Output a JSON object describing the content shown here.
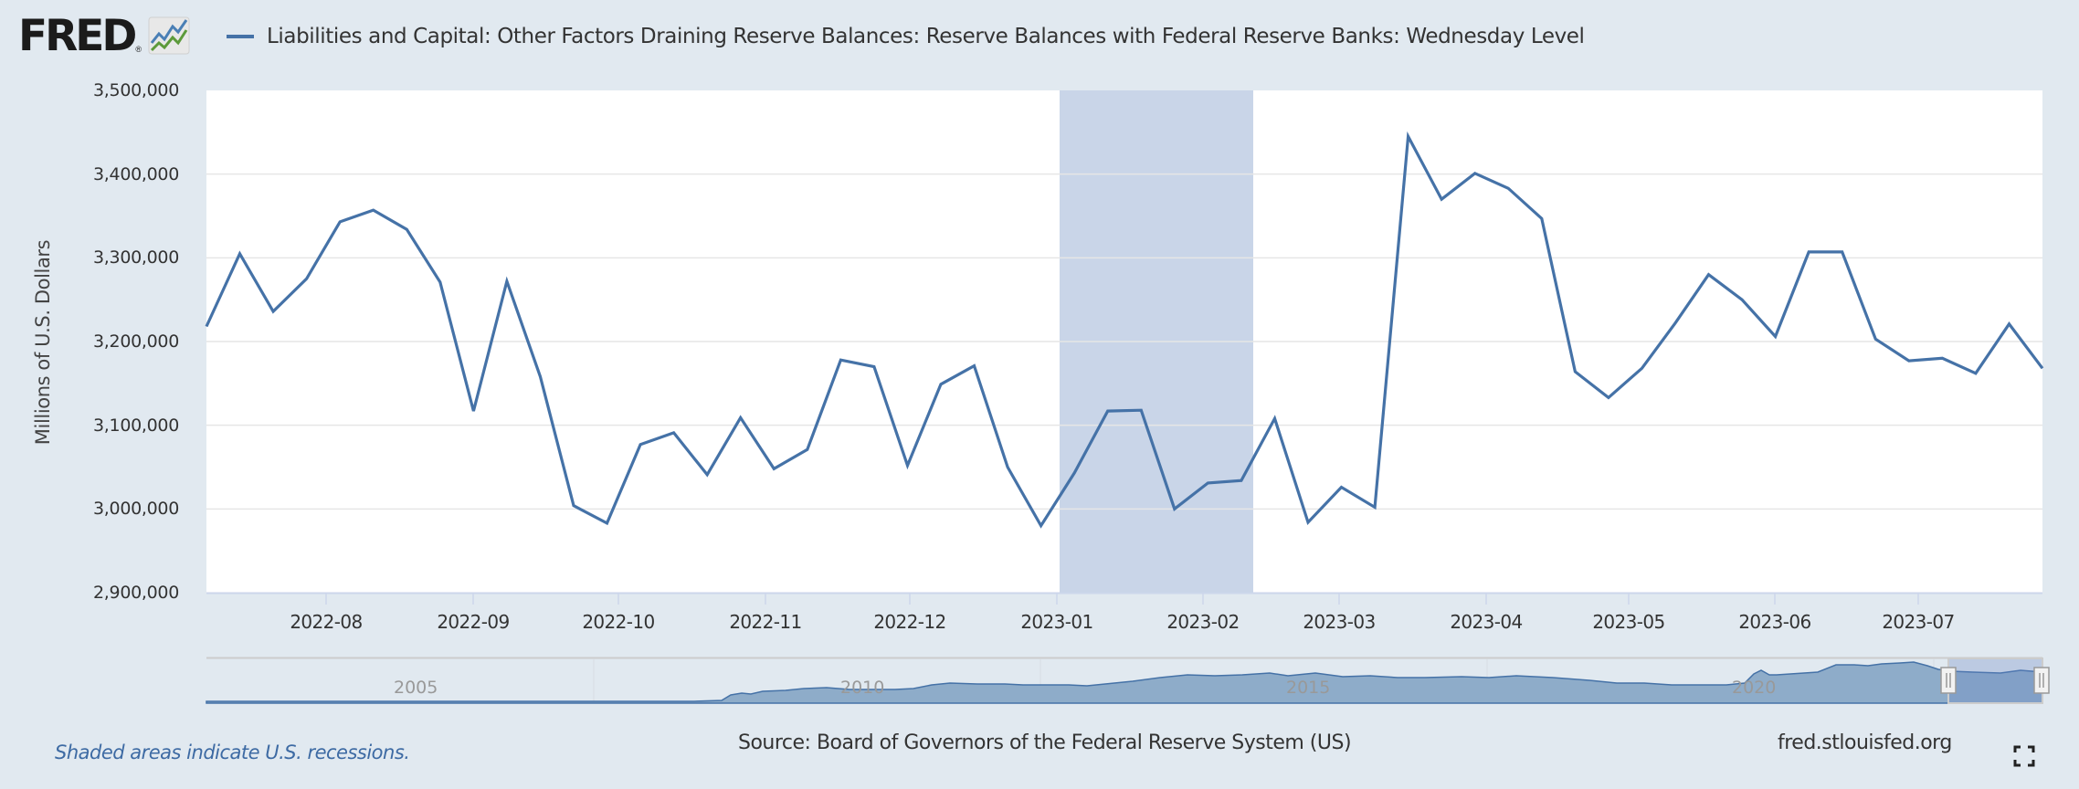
{
  "header": {
    "logo_text": "FRED",
    "logo_reg": "®",
    "legend_title": "Liabilities and Capital: Other Factors Draining Reserve Balances: Reserve Balances with Federal Reserve Banks: Wednesday Level",
    "series_color": "#4572a7"
  },
  "axes": {
    "ylabel": "Millions of U.S. Dollars",
    "yticks": [
      "3,500,000",
      "3,400,000",
      "3,300,000",
      "3,200,000",
      "3,100,000",
      "3,000,000",
      "2,900,000"
    ],
    "xticks": [
      "2022-08",
      "2022-09",
      "2022-10",
      "2022-11",
      "2022-12",
      "2023-01",
      "2023-02",
      "2023-03",
      "2023-04",
      "2023-05",
      "2023-06",
      "2023-07"
    ]
  },
  "navigator": {
    "years": [
      "2005",
      "2010",
      "2015",
      "2020"
    ]
  },
  "footer": {
    "recession_note": "Shaded areas indicate U.S. recessions.",
    "source": "Source: Board of Governors of the Federal Reserve System (US)",
    "site": "fred.stlouisfed.org"
  },
  "chart_data": {
    "type": "line",
    "title": "Liabilities and Capital: Other Factors Draining Reserve Balances: Reserve Balances with Federal Reserve Banks: Wednesday Level",
    "xlabel": "",
    "ylabel": "Millions of U.S. Dollars",
    "ylim": [
      2900000,
      3500000
    ],
    "grid": true,
    "legend_position": "top",
    "shaded_regions": [
      {
        "label": "Recession shading",
        "start": "2023-01",
        "end": "2023-02 (mid)"
      }
    ],
    "x_range": [
      "2022-07 (mid)",
      "2023-07 (end)"
    ],
    "series": [
      {
        "name": "Reserve Balances with Federal Reserve Banks: Wednesday Level",
        "color": "#4572a7",
        "values": [
          3218000,
          3305000,
          3236000,
          3275000,
          3343000,
          3357000,
          3334000,
          3271000,
          3117000,
          3272000,
          3158000,
          3004000,
          2983000,
          3077000,
          3091000,
          3041000,
          3109000,
          3048000,
          3071000,
          3178000,
          3170000,
          3052000,
          3149000,
          3171000,
          3050000,
          2980000,
          3043000,
          3117000,
          3118000,
          3000000,
          3031000,
          3034000,
          3108000,
          2984000,
          3026000,
          3002000,
          3445000,
          3370000,
          3401000,
          3383000,
          3347000,
          3164000,
          3133000,
          3168000,
          3222000,
          3280000,
          3250000,
          3206000,
          3307000,
          3307000,
          3203000,
          3177000,
          3180000,
          3162000,
          3221000,
          3168000
        ]
      }
    ]
  }
}
